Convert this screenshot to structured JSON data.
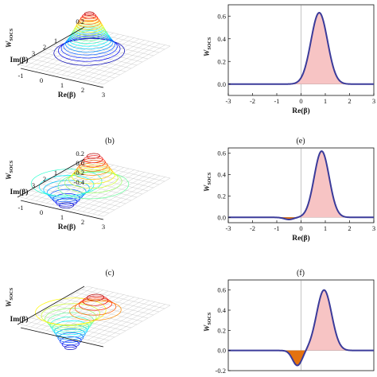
{
  "chart_data": [
    {
      "id": "a",
      "type": "surface3d",
      "zlabel_main": "W",
      "zlabel_sub": "SOCS",
      "xlabel": "Re(β)",
      "ylabel": "Im(β)",
      "x_ticks": [
        "-1",
        "0",
        "1",
        "2",
        "3"
      ],
      "y_ticks": [
        "1",
        "2",
        "3"
      ],
      "z_ticks": [
        "0.2"
      ],
      "surface": {
        "peak": 0.62,
        "peak_x": 0.7,
        "peak_y": 0,
        "trough": 0.0
      }
    },
    {
      "id": "b",
      "type": "surface3d",
      "panel_label": "(b)",
      "zlabel_main": "W",
      "zlabel_sub": "SOCS",
      "xlabel": "Re(β)",
      "ylabel": "Im(β)",
      "x_ticks": [
        "-1",
        "0",
        "1",
        "2",
        "3"
      ],
      "y_ticks": [
        "1",
        "2",
        "3"
      ],
      "z_ticks": [
        "0.2",
        "0.0",
        "-0.2",
        "-0.4"
      ],
      "surface": {
        "peak": 0.5,
        "peak_x": 0.9,
        "peak_y": 0,
        "trough": -0.4,
        "trough_x": -0.4,
        "trough_y": 0
      }
    },
    {
      "id": "c",
      "type": "surface3d",
      "panel_label": "(c)",
      "zlabel_main": "W",
      "zlabel_sub": "SOCS",
      "xlabel": "",
      "ylabel": "Im(β)",
      "x_ticks": [],
      "y_ticks": [],
      "z_ticks": [],
      "surface": {
        "peak": 0.3,
        "peak_x": 1.0,
        "peak_y": 0,
        "trough": -0.6,
        "trough_x": -0.2,
        "trough_y": 0
      }
    },
    {
      "id": "d",
      "type": "area",
      "ylabel_main": "W",
      "ylabel_sub": "SOCS",
      "xlabel": "Re(β)",
      "xlim": [
        -3,
        3
      ],
      "ylim": [
        -0.1,
        0.7
      ],
      "x_ticks": [
        -3,
        -2,
        -1,
        0,
        1,
        2,
        3
      ],
      "y_ticks": [
        0.0,
        0.2,
        0.4,
        0.6
      ],
      "series": [
        {
          "peak_x": 0.75,
          "peak": 0.63,
          "width": 0.55,
          "neg_x": -0.6,
          "neg": 0.0
        }
      ]
    },
    {
      "id": "e",
      "type": "area",
      "panel_label": "(e)",
      "ylabel_main": "W",
      "ylabel_sub": "SOCS",
      "xlabel": "Re(β)",
      "xlim": [
        -3,
        3
      ],
      "ylim": [
        -0.05,
        0.65
      ],
      "x_ticks": [
        -3,
        -2,
        -1,
        0,
        1,
        2,
        3
      ],
      "y_ticks": [
        0.0,
        0.2,
        0.4,
        0.6
      ],
      "series": [
        {
          "peak_x": 0.85,
          "peak": 0.62,
          "width": 0.5,
          "neg_x": -0.5,
          "neg": -0.02
        }
      ]
    },
    {
      "id": "f",
      "type": "area",
      "panel_label": "(f)",
      "ylabel_main": "W",
      "ylabel_sub": "SOCS",
      "xlabel": "",
      "xlim": [
        -3,
        3
      ],
      "ylim": [
        -0.2,
        0.7
      ],
      "x_ticks": [],
      "y_ticks": [
        -0.2,
        0.0,
        0.2,
        0.4,
        0.6
      ],
      "series": [
        {
          "peak_x": 0.95,
          "peak": 0.6,
          "width": 0.5,
          "neg_x": -0.15,
          "neg": -0.15
        }
      ]
    }
  ],
  "colors": {
    "curve": "#3b3b9a",
    "pos_fill": "#f7c4c4",
    "neg_fill": "#e4720f",
    "grid3d": "#b9b9b9",
    "axis": "#111111"
  }
}
